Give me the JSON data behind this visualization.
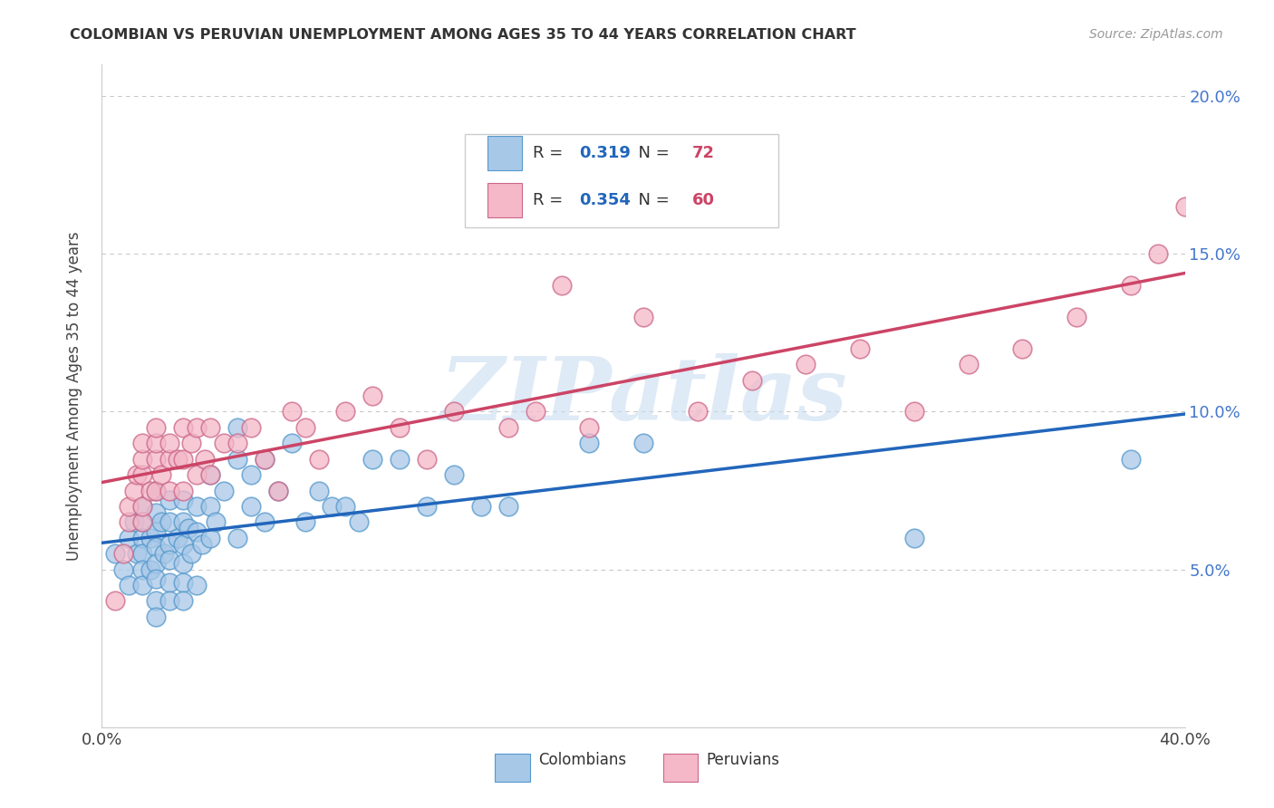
{
  "title": "COLOMBIAN VS PERUVIAN UNEMPLOYMENT AMONG AGES 35 TO 44 YEARS CORRELATION CHART",
  "source": "Source: ZipAtlas.com",
  "ylabel": "Unemployment Among Ages 35 to 44 years",
  "xlim": [
    0.0,
    0.4
  ],
  "ylim": [
    0.0,
    0.21
  ],
  "xticks": [
    0.0,
    0.05,
    0.1,
    0.15,
    0.2,
    0.25,
    0.3,
    0.35,
    0.4
  ],
  "yticks": [
    0.0,
    0.05,
    0.1,
    0.15,
    0.2
  ],
  "yticklabels": [
    "",
    "5.0%",
    "10.0%",
    "15.0%",
    "20.0%"
  ],
  "colombian_fill": "#a8c8e8",
  "colombian_edge": "#5599cc",
  "peruvian_fill": "#f4b8c8",
  "peruvian_edge": "#cc6688",
  "colombian_trend_color": "#2266bb",
  "peruvian_trend_color": "#cc4466",
  "R_colombian": 0.319,
  "N_colombian": 72,
  "R_peruvian": 0.354,
  "N_peruvian": 60,
  "legend_R_color": "#2266bb",
  "legend_N_color": "#cc4466",
  "watermark": "ZIPatlas",
  "watermark_color": "#c8ddf0",
  "colombian_x": [
    0.005,
    0.008,
    0.01,
    0.01,
    0.012,
    0.013,
    0.015,
    0.015,
    0.015,
    0.015,
    0.015,
    0.015,
    0.018,
    0.018,
    0.02,
    0.02,
    0.02,
    0.02,
    0.02,
    0.02,
    0.02,
    0.02,
    0.022,
    0.023,
    0.025,
    0.025,
    0.025,
    0.025,
    0.025,
    0.025,
    0.028,
    0.03,
    0.03,
    0.03,
    0.03,
    0.03,
    0.03,
    0.032,
    0.033,
    0.035,
    0.035,
    0.035,
    0.037,
    0.04,
    0.04,
    0.04,
    0.042,
    0.045,
    0.05,
    0.05,
    0.05,
    0.055,
    0.055,
    0.06,
    0.06,
    0.065,
    0.07,
    0.075,
    0.08,
    0.085,
    0.09,
    0.095,
    0.1,
    0.11,
    0.12,
    0.13,
    0.14,
    0.15,
    0.18,
    0.2,
    0.3,
    0.38
  ],
  "colombian_y": [
    0.055,
    0.05,
    0.06,
    0.045,
    0.065,
    0.055,
    0.07,
    0.065,
    0.06,
    0.055,
    0.05,
    0.045,
    0.06,
    0.05,
    0.075,
    0.068,
    0.062,
    0.057,
    0.052,
    0.047,
    0.04,
    0.035,
    0.065,
    0.055,
    0.072,
    0.065,
    0.058,
    0.053,
    0.046,
    0.04,
    0.06,
    0.072,
    0.065,
    0.058,
    0.052,
    0.046,
    0.04,
    0.063,
    0.055,
    0.07,
    0.062,
    0.045,
    0.058,
    0.08,
    0.07,
    0.06,
    0.065,
    0.075,
    0.095,
    0.085,
    0.06,
    0.08,
    0.07,
    0.085,
    0.065,
    0.075,
    0.09,
    0.065,
    0.075,
    0.07,
    0.07,
    0.065,
    0.085,
    0.085,
    0.07,
    0.08,
    0.07,
    0.07,
    0.09,
    0.09,
    0.06,
    0.085
  ],
  "peruvian_x": [
    0.005,
    0.008,
    0.01,
    0.01,
    0.012,
    0.013,
    0.015,
    0.015,
    0.015,
    0.015,
    0.015,
    0.018,
    0.02,
    0.02,
    0.02,
    0.02,
    0.022,
    0.025,
    0.025,
    0.025,
    0.028,
    0.03,
    0.03,
    0.03,
    0.033,
    0.035,
    0.035,
    0.038,
    0.04,
    0.04,
    0.045,
    0.05,
    0.055,
    0.06,
    0.065,
    0.07,
    0.075,
    0.08,
    0.09,
    0.1,
    0.11,
    0.12,
    0.13,
    0.14,
    0.15,
    0.16,
    0.17,
    0.18,
    0.2,
    0.22,
    0.24,
    0.26,
    0.28,
    0.3,
    0.32,
    0.34,
    0.36,
    0.38,
    0.39,
    0.4
  ],
  "peruvian_y": [
    0.04,
    0.055,
    0.065,
    0.07,
    0.075,
    0.08,
    0.065,
    0.07,
    0.08,
    0.085,
    0.09,
    0.075,
    0.075,
    0.085,
    0.09,
    0.095,
    0.08,
    0.075,
    0.085,
    0.09,
    0.085,
    0.075,
    0.085,
    0.095,
    0.09,
    0.08,
    0.095,
    0.085,
    0.08,
    0.095,
    0.09,
    0.09,
    0.095,
    0.085,
    0.075,
    0.1,
    0.095,
    0.085,
    0.1,
    0.105,
    0.095,
    0.085,
    0.1,
    0.17,
    0.095,
    0.1,
    0.14,
    0.095,
    0.13,
    0.1,
    0.11,
    0.115,
    0.12,
    0.1,
    0.115,
    0.12,
    0.13,
    0.14,
    0.15,
    0.165
  ]
}
